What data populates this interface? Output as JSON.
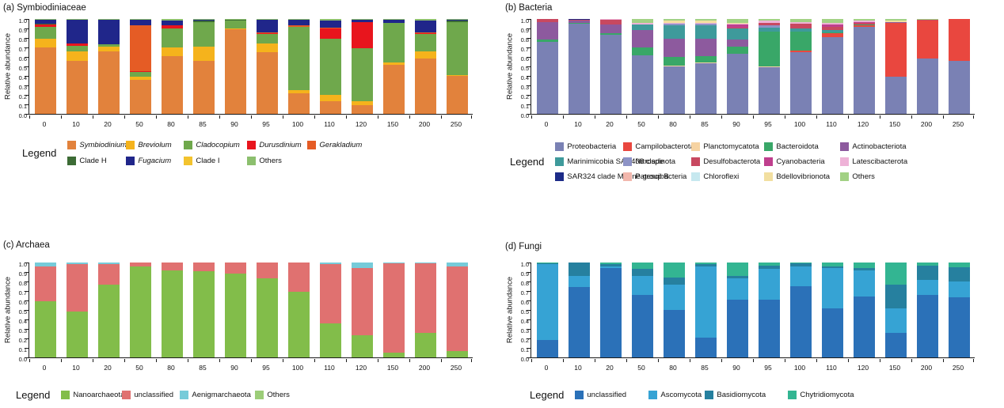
{
  "chart_data": [
    {
      "type": "bar",
      "key": "a",
      "title": "(a) Symbiodiniaceae",
      "ylabel": "Relative abundance",
      "legend_label": "Legend",
      "ylim": [
        0,
        1
      ],
      "grid": false,
      "legend_position": "bottom",
      "yticks": [
        "1.0",
        "0.9",
        "0.8",
        "0.7",
        "0.6",
        "0.5",
        "0.4",
        "0.3",
        "0.2",
        "0.1",
        "0.0"
      ],
      "categories": [
        "0",
        "10",
        "20",
        "50",
        "80",
        "85",
        "90",
        "95",
        "100",
        "110",
        "120",
        "150",
        "200",
        "250"
      ],
      "series": [
        {
          "name": "Symbiodinium",
          "color": "#e2823c",
          "italic": true,
          "values": [
            0.7,
            0.56,
            0.66,
            0.36,
            0.61,
            0.56,
            0.89,
            0.65,
            0.22,
            0.13,
            0.09,
            0.52,
            0.58,
            0.4
          ]
        },
        {
          "name": "Breviolum",
          "color": "#f5b31c",
          "italic": true,
          "values": [
            0.09,
            0.1,
            0.05,
            0.03,
            0.09,
            0.15,
            0.01,
            0.09,
            0.03,
            0.07,
            0.04,
            0.02,
            0.08,
            0.01
          ]
        },
        {
          "name": "Cladocopium",
          "color": "#6fa84c",
          "italic": true,
          "values": [
            0.13,
            0.06,
            0.02,
            0.05,
            0.2,
            0.26,
            0.08,
            0.1,
            0.67,
            0.59,
            0.56,
            0.42,
            0.18,
            0.56
          ]
        },
        {
          "name": "Durusdinium",
          "color": "#e8151d",
          "italic": true,
          "values": [
            0.02,
            0.02,
            0.0,
            0.01,
            0.03,
            0.0,
            0.0,
            0.01,
            0.0,
            0.11,
            0.28,
            0.0,
            0.01,
            0.0
          ]
        },
        {
          "name": "Gerakladium",
          "color": "#e55c25",
          "italic": true,
          "values": [
            0.0,
            0.0,
            0.0,
            0.48,
            0.0,
            0.0,
            0.0,
            0.01,
            0.01,
            0.01,
            0.0,
            0.0,
            0.01,
            0.0
          ]
        },
        {
          "name": "Clade H",
          "color": "#3c6b35",
          "italic": false,
          "values": [
            0.01,
            0.0,
            0.0,
            0.0,
            0.0,
            0.01,
            0.01,
            0.0,
            0.0,
            0.0,
            0.0,
            0.0,
            0.0,
            0.01
          ]
        },
        {
          "name": "Fugacium",
          "color": "#20268a",
          "italic": true,
          "values": [
            0.04,
            0.25,
            0.26,
            0.06,
            0.05,
            0.01,
            0.0,
            0.13,
            0.06,
            0.07,
            0.02,
            0.03,
            0.12,
            0.01
          ]
        },
        {
          "name": "Clade I",
          "color": "#f3c32e",
          "italic": false,
          "values": [
            0.0,
            0.0,
            0.0,
            0.0,
            0.0,
            0.0,
            0.0,
            0.0,
            0.0,
            0.0,
            0.0,
            0.0,
            0.0,
            0.0
          ]
        },
        {
          "name": "Others",
          "color": "#8cbf6e",
          "italic": false,
          "values": [
            0.01,
            0.01,
            0.01,
            0.01,
            0.02,
            0.01,
            0.01,
            0.01,
            0.01,
            0.02,
            0.01,
            0.01,
            0.02,
            0.01
          ]
        }
      ]
    },
    {
      "type": "bar",
      "key": "b",
      "title": "(b) Bacteria",
      "ylabel": "Relative abundance",
      "legend_label": "Legend",
      "ylim": [
        0,
        1
      ],
      "grid": false,
      "legend_position": "bottom",
      "yticks": [
        "1.0",
        "0.9",
        "0.8",
        "0.7",
        "0.6",
        "0.5",
        "0.4",
        "0.3",
        "0.2",
        "0.1",
        "0.0"
      ],
      "categories": [
        "0",
        "10",
        "20",
        "50",
        "80",
        "85",
        "90",
        "95",
        "100",
        "110",
        "120",
        "150",
        "200",
        "250"
      ],
      "series": [
        {
          "name": "Proteobacteria",
          "color": "#7a81b4",
          "italic": false,
          "values": [
            0.76,
            0.95,
            0.83,
            0.62,
            0.5,
            0.53,
            0.63,
            0.49,
            0.65,
            0.81,
            0.92,
            0.39,
            0.58,
            0.56
          ]
        },
        {
          "name": "Campilobacterota",
          "color": "#e9473f",
          "italic": false,
          "values": [
            0.0,
            0.0,
            0.0,
            0.0,
            0.0,
            0.0,
            0.0,
            0.0,
            0.02,
            0.04,
            0.01,
            0.57,
            0.4,
            0.44
          ]
        },
        {
          "name": "Planctomycatota",
          "color": "#f6d3a2",
          "italic": false,
          "values": [
            0.0,
            0.0,
            0.0,
            0.0,
            0.01,
            0.01,
            0.0,
            0.01,
            0.0,
            0.0,
            0.0,
            0.0,
            0.0,
            0.0
          ]
        },
        {
          "name": "Bacteroidota",
          "color": "#39a768",
          "italic": false,
          "values": [
            0.02,
            0.01,
            0.02,
            0.08,
            0.09,
            0.07,
            0.08,
            0.37,
            0.2,
            0.01,
            0.01,
            0.0,
            0.0,
            0.0
          ]
        },
        {
          "name": "Actinobacteriota",
          "color": "#8d5a9e",
          "italic": false,
          "values": [
            0.19,
            0.02,
            0.09,
            0.18,
            0.19,
            0.18,
            0.07,
            0.0,
            0.0,
            0.0,
            0.0,
            0.01,
            0.0,
            0.0
          ]
        },
        {
          "name": "Marinimicobia SAR406 clade",
          "color": "#3e9a9b",
          "italic": false,
          "values": [
            0.0,
            0.0,
            0.0,
            0.06,
            0.14,
            0.14,
            0.12,
            0.04,
            0.03,
            0.02,
            0.0,
            0.0,
            0.0,
            0.0
          ]
        },
        {
          "name": "Nitrospinota",
          "color": "#8d93c6",
          "italic": false,
          "values": [
            0.0,
            0.0,
            0.0,
            0.0,
            0.02,
            0.02,
            0.0,
            0.02,
            0.0,
            0.0,
            0.0,
            0.0,
            0.0,
            0.0
          ]
        },
        {
          "name": "Desulfobacterota",
          "color": "#c84860",
          "italic": false,
          "values": [
            0.03,
            0.01,
            0.05,
            0.0,
            0.0,
            0.0,
            0.01,
            0.03,
            0.05,
            0.04,
            0.02,
            0.0,
            0.01,
            0.0
          ]
        },
        {
          "name": "Cyanobacteria",
          "color": "#bf3f8d",
          "italic": false,
          "values": [
            0.0,
            0.0,
            0.0,
            0.0,
            0.0,
            0.0,
            0.03,
            0.0,
            0.0,
            0.02,
            0.01,
            0.0,
            0.0,
            0.0
          ]
        },
        {
          "name": "Latescibacterota",
          "color": "#eeb2d7",
          "italic": false,
          "values": [
            0.0,
            0.0,
            0.01,
            0.02,
            0.01,
            0.01,
            0.01,
            0.02,
            0.02,
            0.02,
            0.01,
            0.0,
            0.0,
            0.0
          ]
        },
        {
          "name": "SAR324 clade Marine group B",
          "color": "#1c2b88",
          "italic": false,
          "values": [
            0.0,
            0.01,
            0.0,
            0.0,
            0.0,
            0.0,
            0.0,
            0.0,
            0.0,
            0.0,
            0.0,
            0.0,
            0.0,
            0.0
          ]
        },
        {
          "name": "Patescibacteria",
          "color": "#f2b7ad",
          "italic": false,
          "values": [
            0.0,
            0.0,
            0.0,
            0.0,
            0.0,
            0.0,
            0.0,
            0.0,
            0.0,
            0.0,
            0.0,
            0.0,
            0.0,
            0.0
          ]
        },
        {
          "name": "Chloroflexi",
          "color": "#c6e8ef",
          "italic": false,
          "values": [
            0.0,
            0.0,
            0.0,
            0.0,
            0.0,
            0.0,
            0.0,
            0.0,
            0.0,
            0.0,
            0.0,
            0.0,
            0.0,
            0.0
          ]
        },
        {
          "name": "Bdellovibrionota",
          "color": "#f2dfa0",
          "italic": false,
          "values": [
            0.0,
            0.0,
            0.0,
            0.0,
            0.02,
            0.02,
            0.01,
            0.0,
            0.0,
            0.0,
            0.0,
            0.01,
            0.0,
            0.0
          ]
        },
        {
          "name": "Others",
          "color": "#a2d184",
          "italic": false,
          "values": [
            0.0,
            0.0,
            0.0,
            0.04,
            0.02,
            0.02,
            0.04,
            0.02,
            0.03,
            0.04,
            0.02,
            0.02,
            0.01,
            0.0
          ]
        }
      ]
    },
    {
      "type": "bar",
      "key": "c",
      "title": "(c) Archaea",
      "ylabel": "Relative abundance",
      "legend_label": "Legend",
      "ylim": [
        0,
        1
      ],
      "grid": false,
      "legend_position": "bottom",
      "yticks": [
        "1.0",
        "0.9",
        "0.8",
        "0.7",
        "0.6",
        "0.5",
        "0.4",
        "0.3",
        "0.2",
        "0.1",
        "0.0"
      ],
      "categories": [
        "0",
        "10",
        "20",
        "50",
        "80",
        "85",
        "90",
        "95",
        "100",
        "110",
        "120",
        "150",
        "200",
        "250"
      ],
      "series": [
        {
          "name": "Nanoarchaeota",
          "color": "#82bd4a",
          "italic": false,
          "values": [
            0.59,
            0.48,
            0.77,
            0.96,
            0.92,
            0.91,
            0.88,
            0.83,
            0.69,
            0.36,
            0.23,
            0.05,
            0.26,
            0.07
          ]
        },
        {
          "name": "unclassified",
          "color": "#e07170",
          "italic": false,
          "values": [
            0.37,
            0.5,
            0.21,
            0.04,
            0.08,
            0.09,
            0.12,
            0.17,
            0.31,
            0.62,
            0.71,
            0.94,
            0.73,
            0.89
          ]
        },
        {
          "name": "Aenigmarchaeota",
          "color": "#76cbd9",
          "italic": false,
          "values": [
            0.04,
            0.02,
            0.02,
            0.0,
            0.0,
            0.0,
            0.0,
            0.0,
            0.0,
            0.02,
            0.06,
            0.01,
            0.01,
            0.04
          ]
        },
        {
          "name": "Others",
          "color": "#9ccd78",
          "italic": false,
          "values": [
            0.0,
            0.0,
            0.0,
            0.0,
            0.0,
            0.0,
            0.0,
            0.0,
            0.0,
            0.0,
            0.0,
            0.0,
            0.0,
            0.0
          ]
        }
      ]
    },
    {
      "type": "bar",
      "key": "d",
      "title": "(d) Fungi",
      "ylabel": "Relative abundance",
      "legend_label": "Legend",
      "ylim": [
        0,
        1
      ],
      "grid": false,
      "legend_position": "bottom",
      "yticks": [
        "1.0",
        "0.9",
        "0.8",
        "0.7",
        "0.6",
        "0.5",
        "0.4",
        "0.3",
        "0.2",
        "0.1",
        "0.0"
      ],
      "categories": [
        "0",
        "10",
        "20",
        "50",
        "80",
        "85",
        "90",
        "95",
        "100",
        "110",
        "120",
        "150",
        "200",
        "250"
      ],
      "series": [
        {
          "name": "unclassified",
          "color": "#2b71b8",
          "italic": false,
          "values": [
            0.18,
            0.74,
            0.94,
            0.66,
            0.5,
            0.21,
            0.61,
            0.61,
            0.75,
            0.52,
            0.64,
            0.26,
            0.66,
            0.63
          ]
        },
        {
          "name": "Ascomycota",
          "color": "#36a3d4",
          "italic": false,
          "values": [
            0.8,
            0.12,
            0.02,
            0.2,
            0.27,
            0.75,
            0.22,
            0.32,
            0.21,
            0.42,
            0.28,
            0.26,
            0.16,
            0.17
          ]
        },
        {
          "name": "Basidiomycota",
          "color": "#26809f",
          "italic": false,
          "values": [
            0.01,
            0.14,
            0.02,
            0.07,
            0.07,
            0.02,
            0.03,
            0.04,
            0.03,
            0.02,
            0.02,
            0.25,
            0.15,
            0.15
          ]
        },
        {
          "name": "Chytridiomycota",
          "color": "#33b592",
          "italic": false,
          "values": [
            0.01,
            0.0,
            0.02,
            0.07,
            0.16,
            0.02,
            0.14,
            0.03,
            0.01,
            0.04,
            0.06,
            0.23,
            0.03,
            0.05
          ]
        }
      ]
    }
  ]
}
